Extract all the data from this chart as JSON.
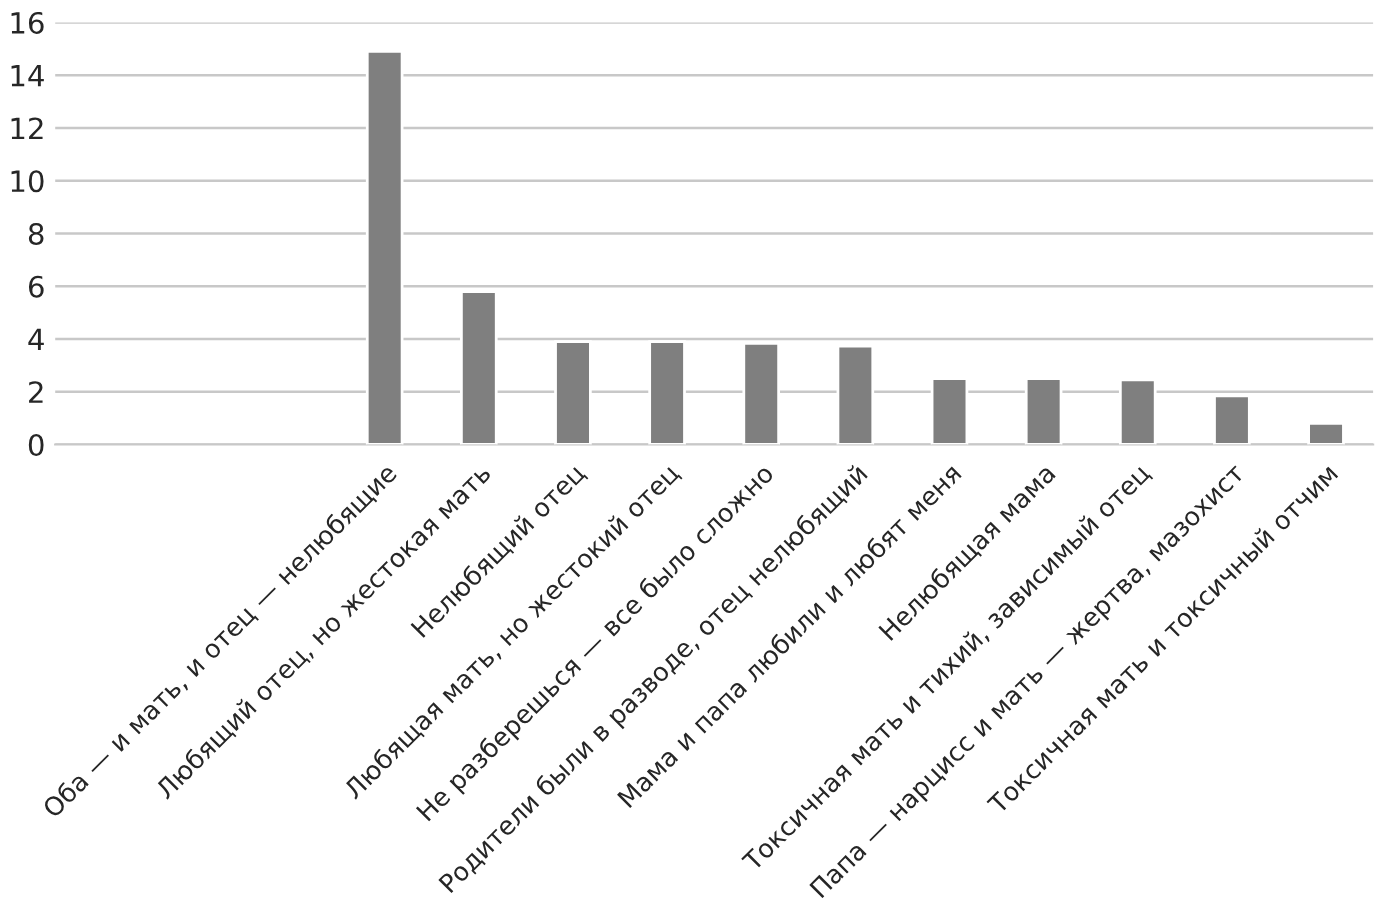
{
  "chart_data": {
    "type": "bar",
    "categories": [
      null,
      null,
      null,
      "Оба — и мать, и отец — нелюбящие",
      "Любящий отец, но жестокая мать",
      "Нелюбящий отец",
      "Любящая мать, но жестокий отец",
      "Не разберешься — все было сложно",
      "Родители были в разводе, отец нелюбящий",
      "Мама и папа любили и любят меня",
      "Нелюбящая мама",
      "Токсичная мать и тихий, зависимый отец",
      "Папа — нарцисс и мать — жертва, мазохист",
      "Токсичная мать и токсичный отчим"
    ],
    "values": [
      null,
      null,
      null,
      14.9,
      5.8,
      3.9,
      3.9,
      3.83,
      3.73,
      2.5,
      2.5,
      2.45,
      1.84,
      0.8
    ],
    "color": "#7f7f7f",
    "ylim": [
      0,
      16
    ],
    "yticks": [
      0,
      2,
      4,
      6,
      8,
      10,
      12,
      14,
      16
    ],
    "grid": "y",
    "legend": false
  }
}
